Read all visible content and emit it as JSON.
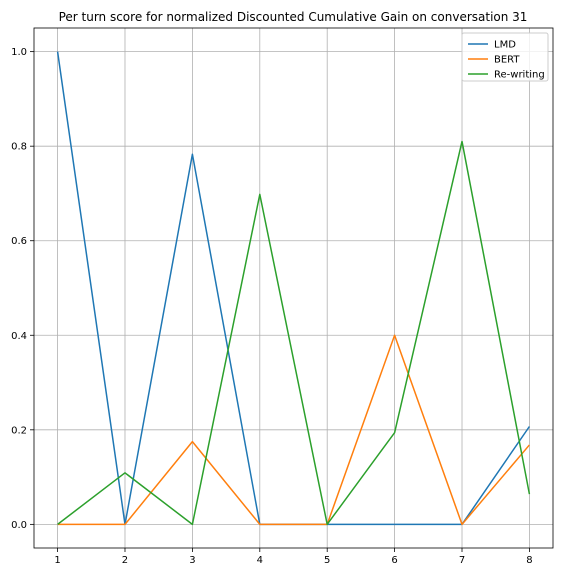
{
  "chart_data": {
    "type": "line",
    "title": "Per turn score for normalized Discounted Cumulative Gain on conversation 31",
    "xlabel": "",
    "ylabel": "",
    "x": [
      1,
      2,
      3,
      4,
      5,
      6,
      7,
      8
    ],
    "xlim": [
      0.65,
      8.35
    ],
    "ylim": [
      -0.05,
      1.05
    ],
    "xticks": [
      "1",
      "2",
      "3",
      "4",
      "5",
      "6",
      "7",
      "8"
    ],
    "yticks": [
      "0.0",
      "0.2",
      "0.4",
      "0.6",
      "0.8",
      "1.0"
    ],
    "grid": true,
    "legend_position": "top-right",
    "series": [
      {
        "name": "LMD",
        "color": "#1f77b4",
        "values": [
          1.0,
          0.0,
          0.783,
          0.0,
          0.0,
          0.0,
          0.0,
          0.207
        ]
      },
      {
        "name": "BERT",
        "color": "#ff7f0e",
        "values": [
          0.0,
          0.0,
          0.175,
          0.0,
          0.0,
          0.4,
          0.0,
          0.168
        ]
      },
      {
        "name": "Re-writing",
        "color": "#2ca02c",
        "values": [
          0.0,
          0.109,
          0.0,
          0.698,
          0.0,
          0.194,
          0.81,
          0.064
        ]
      }
    ]
  }
}
